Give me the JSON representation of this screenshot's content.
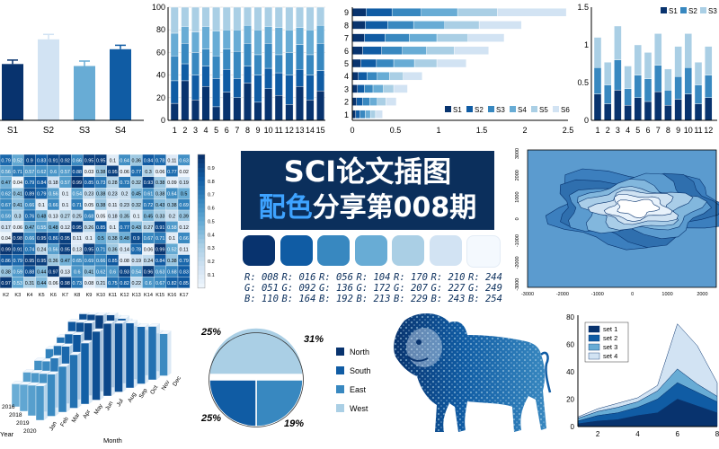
{
  "banner": {
    "line1": "SCI论文插图",
    "line2_highlight": "配色",
    "line2_rest": "分享第008期"
  },
  "palette": [
    {
      "r": "R: 008",
      "g": "G: 051",
      "b": "B: 110",
      "hex": "#08336e"
    },
    {
      "r": "R: 016",
      "g": "G: 092",
      "b": "B: 164",
      "hex": "#105ca4"
    },
    {
      "r": "R: 056",
      "g": "G: 136",
      "b": "B: 192",
      "hex": "#3888c0"
    },
    {
      "r": "R: 104",
      "g": "G: 172",
      "b": "B: 213",
      "hex": "#68acd5"
    },
    {
      "r": "R: 170",
      "g": "G: 207",
      "b": "B: 229",
      "hex": "#aacfe5"
    },
    {
      "r": "R: 210",
      "g": "G: 227",
      "b": "B: 243",
      "hex": "#d2e3f3"
    },
    {
      "r": "R: 244",
      "g": "G: 249",
      "b": "B: 254",
      "hex": "#f4f9fe"
    }
  ],
  "chart_data": [
    {
      "type": "bar",
      "id": "errbar",
      "categories": [
        "S1",
        "S2",
        "S3",
        "S4"
      ],
      "values": [
        57,
        82,
        55,
        72
      ],
      "errors": [
        4,
        5,
        5,
        4
      ],
      "colors": [
        "#08336e",
        "#d2e3f3",
        "#68acd5",
        "#105ca4"
      ],
      "ylim": [
        0,
        100
      ]
    },
    {
      "type": "bar",
      "id": "stacked100",
      "categories": [
        "1",
        "2",
        "3",
        "4",
        "5",
        "6",
        "7",
        "8",
        "9",
        "10",
        "11",
        "12",
        "13",
        "14",
        "15"
      ],
      "yticks": [
        "0",
        "20",
        "40",
        "60",
        "80",
        "100"
      ],
      "ylim": [
        0,
        100
      ],
      "series": [
        {
          "values": [
            15,
            35,
            18,
            30,
            12,
            25,
            20,
            33,
            16,
            28,
            22,
            14,
            30,
            18,
            26
          ]
        },
        {
          "values": [
            20,
            15,
            22,
            18,
            25,
            20,
            17,
            15,
            24,
            18,
            20,
            26,
            15,
            22,
            18
          ]
        },
        {
          "values": [
            22,
            18,
            20,
            15,
            20,
            18,
            24,
            20,
            18,
            22,
            16,
            20,
            22,
            18,
            24
          ]
        },
        {
          "values": [
            20,
            15,
            18,
            20,
            22,
            17,
            19,
            16,
            22,
            15,
            24,
            20,
            15,
            22,
            16
          ]
        },
        {
          "values": [
            23,
            17,
            22,
            17,
            21,
            20,
            20,
            16,
            20,
            17,
            18,
            20,
            18,
            20,
            16
          ]
        }
      ]
    },
    {
      "type": "bar",
      "id": "hbar",
      "categories": [
        "1",
        "2",
        "3",
        "4",
        "5",
        "6",
        "7",
        "8",
        "9"
      ],
      "xticks": [
        "0",
        "0.5",
        "1",
        "1.5",
        "2",
        "2.5"
      ],
      "xlim": [
        0,
        2.5
      ],
      "legend": [
        "S1",
        "S2",
        "S3",
        "S4",
        "S5",
        "S6"
      ],
      "series": [
        {
          "name": "S1",
          "values": [
            0.04,
            0.05,
            0.06,
            0.07,
            0.1,
            0.12,
            0.14,
            0.15,
            0.16
          ]
        },
        {
          "name": "S2",
          "values": [
            0.05,
            0.07,
            0.08,
            0.1,
            0.18,
            0.22,
            0.24,
            0.26,
            0.3
          ]
        },
        {
          "name": "S3",
          "values": [
            0.06,
            0.08,
            0.1,
            0.12,
            0.2,
            0.24,
            0.28,
            0.3,
            0.34
          ]
        },
        {
          "name": "S4",
          "values": [
            0.06,
            0.09,
            0.12,
            0.14,
            0.24,
            0.28,
            0.32,
            0.36,
            0.42
          ]
        },
        {
          "name": "S5",
          "values": [
            0.06,
            0.1,
            0.12,
            0.16,
            0.26,
            0.32,
            0.36,
            0.4,
            0.46
          ]
        },
        {
          "name": "S6",
          "values": [
            0.08,
            0.12,
            0.16,
            0.22,
            0.34,
            0.4,
            0.42,
            0.49,
            0.8
          ]
        }
      ]
    },
    {
      "type": "bar",
      "id": "stackedS",
      "categories": [
        "1",
        "2",
        "3",
        "4",
        "5",
        "6",
        "7",
        "8",
        "9",
        "10",
        "11",
        "12"
      ],
      "yticks": [
        "0",
        "0.5",
        "1",
        "1.5"
      ],
      "ylim": [
        0,
        1.5
      ],
      "legend": [
        "S1",
        "S2",
        "S3"
      ],
      "series": [
        {
          "name": "S1",
          "values": [
            0.35,
            0.22,
            0.4,
            0.2,
            0.3,
            0.25,
            0.38,
            0.2,
            0.28,
            0.35,
            0.22,
            0.3
          ]
        },
        {
          "name": "S2",
          "values": [
            0.35,
            0.25,
            0.4,
            0.22,
            0.3,
            0.3,
            0.35,
            0.2,
            0.3,
            0.35,
            0.25,
            0.3
          ]
        },
        {
          "name": "S3",
          "values": [
            0.4,
            0.3,
            0.45,
            0.3,
            0.4,
            0.35,
            0.42,
            0.28,
            0.4,
            0.45,
            0.3,
            0.38
          ]
        }
      ]
    },
    {
      "type": "heatmap",
      "id": "heatmap",
      "x": [
        "K2",
        "K3",
        "K4",
        "K5",
        "K6",
        "K7",
        "K8",
        "K9",
        "K10",
        "K11",
        "K12",
        "K13",
        "K14",
        "K15",
        "K16",
        "K17"
      ],
      "colorbar": [
        "0.1",
        "0.2",
        "0.3",
        "0.4",
        "0.5",
        "0.6",
        "0.7",
        "0.8",
        "0.9"
      ],
      "rows": [
        [
          0.79,
          0.52,
          0.9,
          0.83,
          0.91,
          0.92,
          0.66,
          0.95,
          0.95,
          0.1,
          0.64,
          0.36,
          0.84,
          0.78,
          0.11,
          0.63
        ],
        [
          0.56,
          0.71,
          0.57,
          0.62,
          0.6,
          0.57,
          0.88,
          0.03,
          0.38,
          0.95,
          0.06,
          0.77,
          0.3,
          0.06,
          0.77,
          0.02
        ],
        [
          0.47,
          0.04,
          0.79,
          0.84,
          0.18,
          0.57,
          0.99,
          0.85,
          0.73,
          0.28,
          0.73,
          0.32,
          0.93,
          0.38,
          0.09,
          0.19
        ],
        [
          0.62,
          0.41,
          0.89,
          0.79,
          0.56,
          0.1,
          0.54,
          0.23,
          0.38,
          0.23,
          0.2,
          0.45,
          0.61,
          0.38,
          0.64,
          0.5
        ],
        [
          0.67,
          0.41,
          0.66,
          0.1,
          0.66,
          0.1,
          0.71,
          0.05,
          0.38,
          0.11,
          0.23,
          0.32,
          0.72,
          0.43,
          0.38,
          0.69
        ],
        [
          0.59,
          0.3,
          0.76,
          0.48,
          0.13,
          0.27,
          0.25,
          0.68,
          0.05,
          0.18,
          0.35,
          0.1,
          0.45,
          0.33,
          0.2,
          0.39
        ],
        [
          0.17,
          0.06,
          0.47,
          0.55,
          0.48,
          0.12,
          0.95,
          0.26,
          0.85,
          0.1,
          0.77,
          0.43,
          0.27,
          0.91,
          0.58,
          0.12
        ],
        [
          0.04,
          0.98,
          0.66,
          0.95,
          0.86,
          0.95,
          0.11,
          0.1,
          0.5,
          0.38,
          0.48,
          0.9,
          0.67,
          0.71,
          0.1,
          0.66
        ],
        [
          0.99,
          0.91,
          0.74,
          0.24,
          0.56,
          0.95,
          0.13,
          0.95,
          0.71,
          0.36,
          0.14,
          0.78,
          0.06,
          0.99,
          0.52,
          0.11
        ],
        [
          0.86,
          0.79,
          0.95,
          0.95,
          0.36,
          0.47,
          0.65,
          0.69,
          0.66,
          0.85,
          0.08,
          0.19,
          0.24,
          0.84,
          0.38,
          0.79
        ],
        [
          0.38,
          0.59,
          0.88,
          0.44,
          0.97,
          0.13,
          0.6,
          0.41,
          0.62,
          0.6,
          0.93,
          0.54,
          0.96,
          0.63,
          0.68,
          0.83
        ],
        [
          0.97,
          0.53,
          0.31,
          0.44,
          0.06,
          0.98,
          0.73,
          0.08,
          0.21,
          0.75,
          0.82,
          0.22,
          0.6,
          0.67,
          0.82,
          0.85
        ]
      ]
    },
    {
      "type": "area",
      "id": "contour",
      "xticks": [
        "-3000",
        "-2000",
        "-1000",
        "0",
        "1000",
        "2000"
      ],
      "yticks": [
        "3000",
        "2000",
        "1000",
        "0",
        "-1000",
        "-2000",
        "-3000"
      ]
    },
    {
      "type": "bar",
      "id": "bar3d",
      "months": [
        "Jan",
        "Feb",
        "Mar",
        "Apr",
        "May",
        "Jun",
        "Jul",
        "Aug",
        "Sep",
        "Oct",
        "Nov",
        "Dec"
      ],
      "years": [
        "2016",
        "2018",
        "2019",
        "2020"
      ],
      "xlabel": "Month",
      "ylabel": "Year",
      "heights": [
        [
          0.45,
          0.55,
          0.6,
          0.7,
          0.8,
          0.9,
          0.95,
          0.9,
          0.85,
          0.75,
          0.7,
          0.55
        ],
        [
          0.4,
          0.5,
          0.65,
          0.75,
          0.85,
          0.95,
          1.0,
          0.95,
          0.85,
          0.7,
          0.6,
          0.5
        ],
        [
          0.35,
          0.45,
          0.55,
          0.7,
          0.8,
          0.9,
          0.95,
          0.9,
          0.8,
          0.7,
          0.55,
          0.45
        ],
        [
          0.3,
          0.4,
          0.5,
          0.6,
          0.7,
          0.85,
          0.9,
          0.85,
          0.75,
          0.65,
          0.5,
          0.4
        ]
      ]
    },
    {
      "type": "pie",
      "id": "pie",
      "labels": [
        "North",
        "South",
        "East",
        "West"
      ],
      "values": [
        25,
        25,
        19,
        31
      ],
      "value_labels": [
        "25%",
        "25%",
        "19%",
        "31%"
      ],
      "colors": [
        "#08336e",
        "#105ca4",
        "#3888c0",
        "#aacfe5"
      ],
      "legend": [
        "North",
        "South",
        "East",
        "West"
      ]
    },
    {
      "type": "area",
      "id": "area",
      "x": [
        1,
        2,
        3,
        4,
        5,
        6,
        7,
        8
      ],
      "xticks": [
        "2",
        "4",
        "6",
        "8"
      ],
      "yticks": [
        "0",
        "20",
        "40",
        "60",
        "80"
      ],
      "ylim": [
        0,
        80
      ],
      "legend": [
        "set 1",
        "set 2",
        "set 3",
        "set 4"
      ],
      "series": [
        {
          "name": "set 1",
          "values": [
            2,
            4,
            5,
            8,
            10,
            20,
            15,
            10
          ]
        },
        {
          "name": "set 2",
          "values": [
            2,
            4,
            5,
            6,
            10,
            12,
            10,
            8
          ]
        },
        {
          "name": "set 3",
          "values": [
            2,
            3,
            4,
            4,
            6,
            10,
            6,
            4
          ]
        },
        {
          "name": "set 4",
          "values": [
            1,
            2,
            3,
            3,
            4,
            33,
            28,
            10
          ]
        }
      ]
    }
  ],
  "colors": {
    "c1": "#08336e",
    "c2": "#105ca4",
    "c3": "#3888c0",
    "c4": "#68acd5",
    "c5": "#aacfe5",
    "c6": "#d2e3f3",
    "c7": "#f4f9fe",
    "banner": "#0b2f5c"
  }
}
